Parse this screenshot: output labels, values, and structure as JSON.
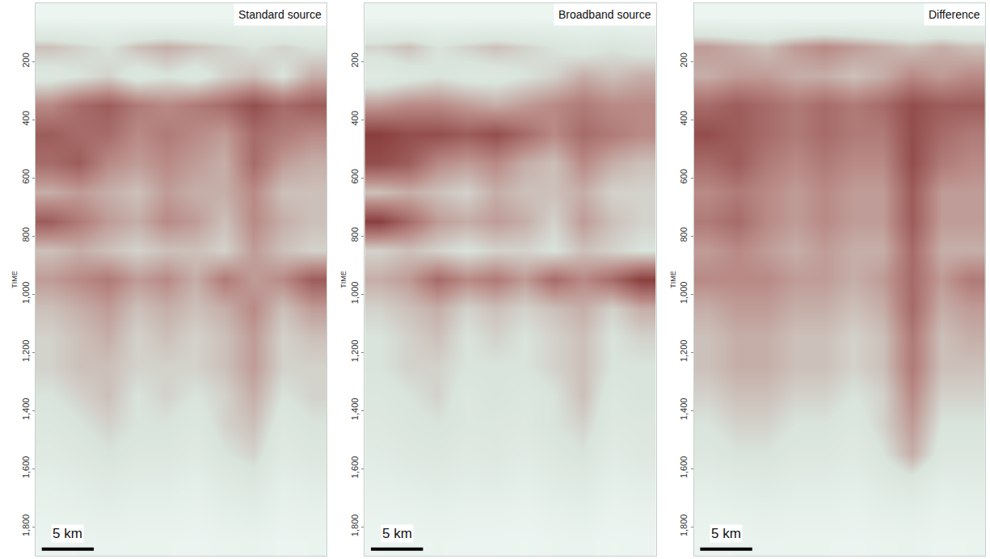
{
  "chart_data": [
    {
      "type": "heatmap",
      "title": "Standard source",
      "y_label": "TIME",
      "tick_labels": "y",
      "xlim": [
        0,
        28
      ],
      "ylim": [
        1900,
        0
      ],
      "zlim": [
        0,
        1
      ],
      "yticks": [
        200,
        400,
        600,
        800,
        {
          "value": 1000,
          "label": "1,000"
        },
        {
          "value": 1200,
          "label": "1,200"
        },
        {
          "value": 1400,
          "label": "1,400"
        },
        {
          "value": 1600,
          "label": "1,600"
        },
        {
          "value": 1800,
          "label": "1,800"
        }
      ],
      "scale_bar": {
        "length": 5,
        "label": "5 km"
      },
      "x": [
        1.4,
        4.2,
        7,
        9.8,
        12.6,
        15.4,
        18.2,
        21,
        23.8,
        26.6
      ],
      "y": [
        50,
        150,
        250,
        350,
        450,
        550,
        650,
        750,
        850,
        950,
        1050,
        1150,
        1250,
        1350,
        1450,
        1550,
        1650,
        1750,
        1850
      ],
      "z": [
        [
          0.04,
          0.04,
          0.04,
          0.04,
          0.04,
          0.04,
          0.04,
          0.04,
          0.04,
          0.04
        ],
        [
          0.45,
          0.4,
          0.35,
          0.45,
          0.5,
          0.45,
          0.4,
          0.35,
          0.4,
          0.35
        ],
        [
          0.3,
          0.35,
          0.4,
          0.3,
          0.35,
          0.3,
          0.4,
          0.45,
          0.35,
          0.5
        ],
        [
          0.6,
          0.7,
          0.75,
          0.65,
          0.6,
          0.65,
          0.7,
          0.8,
          0.7,
          0.75
        ],
        [
          0.75,
          0.7,
          0.7,
          0.6,
          0.65,
          0.6,
          0.55,
          0.7,
          0.65,
          0.6
        ],
        [
          0.7,
          0.75,
          0.6,
          0.55,
          0.6,
          0.55,
          0.5,
          0.7,
          0.55,
          0.5
        ],
        [
          0.5,
          0.55,
          0.5,
          0.45,
          0.55,
          0.5,
          0.5,
          0.6,
          0.45,
          0.45
        ],
        [
          0.75,
          0.65,
          0.55,
          0.5,
          0.6,
          0.55,
          0.45,
          0.6,
          0.5,
          0.45
        ],
        [
          0.45,
          0.5,
          0.45,
          0.4,
          0.45,
          0.45,
          0.4,
          0.55,
          0.45,
          0.4
        ],
        [
          0.55,
          0.6,
          0.65,
          0.55,
          0.6,
          0.5,
          0.65,
          0.55,
          0.6,
          0.75
        ],
        [
          0.45,
          0.5,
          0.55,
          0.45,
          0.5,
          0.45,
          0.5,
          0.6,
          0.45,
          0.55
        ],
        [
          0.4,
          0.45,
          0.5,
          0.4,
          0.45,
          0.4,
          0.45,
          0.55,
          0.4,
          0.45
        ],
        [
          0.4,
          0.45,
          0.45,
          0.4,
          0.4,
          0.4,
          0.45,
          0.55,
          0.4,
          0.4
        ],
        [
          0.35,
          0.4,
          0.45,
          0.35,
          0.4,
          0.35,
          0.4,
          0.5,
          0.35,
          0.4
        ],
        [
          0.3,
          0.35,
          0.4,
          0.35,
          0.35,
          0.3,
          0.4,
          0.45,
          0.3,
          0.35
        ],
        [
          0.25,
          0.3,
          0.35,
          0.3,
          0.3,
          0.25,
          0.35,
          0.4,
          0.25,
          0.3
        ],
        [
          0.15,
          0.2,
          0.25,
          0.2,
          0.2,
          0.15,
          0.25,
          0.3,
          0.15,
          0.2
        ],
        [
          0.1,
          0.12,
          0.15,
          0.12,
          0.12,
          0.1,
          0.15,
          0.18,
          0.1,
          0.12
        ],
        [
          0.05,
          0.06,
          0.07,
          0.06,
          0.06,
          0.05,
          0.07,
          0.08,
          0.05,
          0.06
        ]
      ]
    },
    {
      "type": "heatmap",
      "title": "Broadband source",
      "y_label": "TIME",
      "tick_labels": "y",
      "xlim": [
        0,
        28
      ],
      "ylim": [
        1900,
        0
      ],
      "zlim": [
        0,
        1
      ],
      "yticks": [
        200,
        400,
        600,
        800,
        {
          "value": 1000,
          "label": "1,000"
        },
        {
          "value": 1200,
          "label": "1,200"
        },
        {
          "value": 1400,
          "label": "1,400"
        },
        {
          "value": 1600,
          "label": "1,600"
        },
        {
          "value": 1800,
          "label": "1,800"
        }
      ],
      "scale_bar": {
        "length": 5,
        "label": "5 km"
      },
      "x": [
        1.4,
        4.2,
        7,
        9.8,
        12.6,
        15.4,
        18.2,
        21,
        23.8,
        26.6
      ],
      "y": [
        50,
        150,
        250,
        350,
        450,
        550,
        650,
        750,
        850,
        950,
        1050,
        1150,
        1250,
        1350,
        1450,
        1550,
        1650,
        1750,
        1850
      ],
      "z": [
        [
          0.04,
          0.04,
          0.04,
          0.04,
          0.04,
          0.04,
          0.04,
          0.04,
          0.04,
          0.04
        ],
        [
          0.4,
          0.45,
          0.35,
          0.4,
          0.45,
          0.4,
          0.35,
          0.3,
          0.35,
          0.3
        ],
        [
          0.25,
          0.3,
          0.35,
          0.3,
          0.3,
          0.35,
          0.4,
          0.5,
          0.45,
          0.5
        ],
        [
          0.55,
          0.6,
          0.6,
          0.55,
          0.5,
          0.55,
          0.6,
          0.65,
          0.6,
          0.6
        ],
        [
          0.85,
          0.8,
          0.8,
          0.75,
          0.8,
          0.7,
          0.6,
          0.7,
          0.65,
          0.6
        ],
        [
          0.8,
          0.75,
          0.6,
          0.55,
          0.6,
          0.5,
          0.45,
          0.6,
          0.5,
          0.45
        ],
        [
          0.45,
          0.5,
          0.45,
          0.4,
          0.5,
          0.45,
          0.45,
          0.5,
          0.4,
          0.4
        ],
        [
          0.85,
          0.7,
          0.55,
          0.5,
          0.55,
          0.5,
          0.4,
          0.55,
          0.45,
          0.4
        ],
        [
          0.4,
          0.45,
          0.4,
          0.35,
          0.4,
          0.4,
          0.35,
          0.45,
          0.4,
          0.35
        ],
        [
          0.5,
          0.55,
          0.7,
          0.6,
          0.65,
          0.55,
          0.7,
          0.6,
          0.7,
          0.85
        ],
        [
          0.4,
          0.45,
          0.5,
          0.4,
          0.45,
          0.4,
          0.45,
          0.5,
          0.4,
          0.5
        ],
        [
          0.35,
          0.4,
          0.45,
          0.35,
          0.4,
          0.35,
          0.4,
          0.45,
          0.35,
          0.4
        ],
        [
          0.35,
          0.4,
          0.4,
          0.35,
          0.35,
          0.35,
          0.4,
          0.45,
          0.35,
          0.35
        ],
        [
          0.3,
          0.35,
          0.4,
          0.3,
          0.35,
          0.3,
          0.35,
          0.45,
          0.3,
          0.35
        ],
        [
          0.28,
          0.32,
          0.35,
          0.3,
          0.3,
          0.28,
          0.35,
          0.4,
          0.28,
          0.3
        ],
        [
          0.22,
          0.28,
          0.3,
          0.25,
          0.28,
          0.22,
          0.3,
          0.35,
          0.22,
          0.28
        ],
        [
          0.15,
          0.18,
          0.22,
          0.18,
          0.2,
          0.15,
          0.22,
          0.25,
          0.15,
          0.18
        ],
        [
          0.08,
          0.1,
          0.12,
          0.1,
          0.1,
          0.08,
          0.12,
          0.15,
          0.08,
          0.1
        ],
        [
          0.04,
          0.05,
          0.06,
          0.05,
          0.05,
          0.04,
          0.06,
          0.07,
          0.04,
          0.05
        ]
      ]
    },
    {
      "type": "heatmap",
      "title": "Difference",
      "y_label": "TIME",
      "tick_labels": "y",
      "xlim": [
        0,
        28
      ],
      "ylim": [
        1900,
        0
      ],
      "zlim": [
        0,
        1
      ],
      "yticks": [
        200,
        400,
        600,
        800,
        {
          "value": 1000,
          "label": "1,000"
        },
        {
          "value": 1200,
          "label": "1,200"
        },
        {
          "value": 1400,
          "label": "1,400"
        },
        {
          "value": 1600,
          "label": "1,600"
        },
        {
          "value": 1800,
          "label": "1,800"
        }
      ],
      "scale_bar": {
        "length": 5,
        "label": "5 km"
      },
      "x": [
        1.4,
        4.2,
        7,
        9.8,
        12.6,
        15.4,
        18.2,
        21,
        23.8,
        26.6
      ],
      "y": [
        50,
        150,
        250,
        350,
        450,
        550,
        650,
        750,
        850,
        950,
        1050,
        1150,
        1250,
        1350,
        1450,
        1550,
        1650,
        1750,
        1850
      ],
      "z": [
        [
          0.04,
          0.04,
          0.04,
          0.04,
          0.04,
          0.04,
          0.04,
          0.04,
          0.04,
          0.04
        ],
        [
          0.55,
          0.5,
          0.45,
          0.55,
          0.6,
          0.55,
          0.5,
          0.45,
          0.5,
          0.45
        ],
        [
          0.5,
          0.55,
          0.55,
          0.5,
          0.5,
          0.45,
          0.5,
          0.6,
          0.55,
          0.6
        ],
        [
          0.7,
          0.75,
          0.7,
          0.65,
          0.7,
          0.65,
          0.7,
          0.8,
          0.75,
          0.75
        ],
        [
          0.8,
          0.75,
          0.7,
          0.65,
          0.7,
          0.65,
          0.65,
          0.8,
          0.7,
          0.65
        ],
        [
          0.7,
          0.75,
          0.65,
          0.6,
          0.65,
          0.6,
          0.6,
          0.8,
          0.65,
          0.6
        ],
        [
          0.6,
          0.65,
          0.6,
          0.55,
          0.6,
          0.55,
          0.55,
          0.75,
          0.55,
          0.55
        ],
        [
          0.65,
          0.7,
          0.6,
          0.55,
          0.6,
          0.55,
          0.55,
          0.75,
          0.55,
          0.55
        ],
        [
          0.55,
          0.6,
          0.55,
          0.5,
          0.55,
          0.5,
          0.5,
          0.7,
          0.5,
          0.5
        ],
        [
          0.6,
          0.6,
          0.6,
          0.55,
          0.55,
          0.5,
          0.55,
          0.7,
          0.55,
          0.65
        ],
        [
          0.5,
          0.55,
          0.55,
          0.5,
          0.5,
          0.45,
          0.5,
          0.7,
          0.5,
          0.55
        ],
        [
          0.45,
          0.5,
          0.5,
          0.45,
          0.45,
          0.4,
          0.45,
          0.65,
          0.45,
          0.5
        ],
        [
          0.45,
          0.5,
          0.5,
          0.45,
          0.45,
          0.4,
          0.45,
          0.65,
          0.45,
          0.45
        ],
        [
          0.4,
          0.45,
          0.45,
          0.4,
          0.4,
          0.35,
          0.4,
          0.6,
          0.4,
          0.4
        ],
        [
          0.35,
          0.4,
          0.4,
          0.35,
          0.35,
          0.3,
          0.4,
          0.55,
          0.35,
          0.35
        ],
        [
          0.3,
          0.35,
          0.35,
          0.3,
          0.3,
          0.25,
          0.35,
          0.5,
          0.3,
          0.3
        ],
        [
          0.18,
          0.22,
          0.25,
          0.2,
          0.2,
          0.16,
          0.25,
          0.3,
          0.18,
          0.2
        ],
        [
          0.1,
          0.12,
          0.14,
          0.12,
          0.12,
          0.1,
          0.14,
          0.16,
          0.1,
          0.12
        ],
        [
          0.05,
          0.06,
          0.07,
          0.06,
          0.06,
          0.05,
          0.07,
          0.08,
          0.05,
          0.06
        ]
      ]
    }
  ]
}
